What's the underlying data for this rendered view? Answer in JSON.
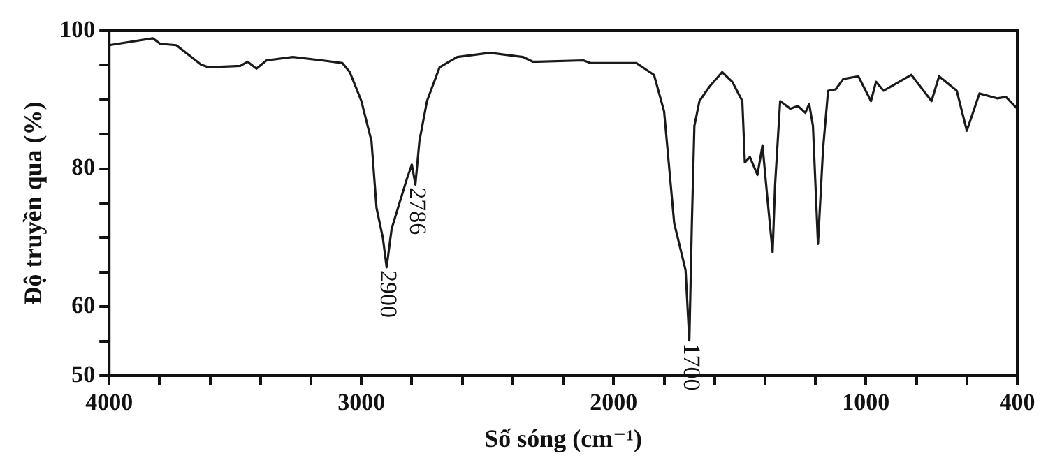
{
  "chart_data": {
    "type": "line",
    "xlabel": "Số sóng (cm⁻¹)",
    "ylabel": "Độ truyền qua (%)",
    "x": [
      4000,
      3827,
      3798,
      3734,
      3636,
      3607,
      3480,
      3451,
      3416,
      3376,
      3272,
      3156,
      3075,
      3046,
      3000,
      2960,
      2940,
      2915,
      2900,
      2880,
      2850,
      2820,
      2800,
      2786,
      2770,
      2740,
      2690,
      2620,
      2490,
      2360,
      2320,
      2300,
      2120,
      2090,
      1910,
      1840,
      1800,
      1760,
      1715,
      1700,
      1690,
      1680,
      1660,
      1620,
      1570,
      1530,
      1490,
      1480,
      1460,
      1430,
      1410,
      1390,
      1370,
      1360,
      1340,
      1300,
      1270,
      1240,
      1225,
      1210,
      1190,
      1170,
      1150,
      1120,
      1090,
      1030,
      980,
      960,
      930,
      820,
      740,
      710,
      640,
      600,
      550,
      480,
      445,
      400
    ],
    "series": [
      {
        "color": "#1a1a1a",
        "values": [
          97.9,
          98.9,
          98.1,
          97.9,
          95.1,
          94.7,
          94.9,
          95.5,
          94.5,
          95.7,
          96.2,
          95.7,
          95.3,
          94.0,
          89.8,
          84.0,
          74.3,
          70.0,
          65.7,
          71.3,
          74.9,
          78.5,
          80.6,
          77.7,
          84.0,
          89.8,
          94.7,
          96.2,
          96.8,
          96.2,
          95.5,
          95.5,
          95.7,
          95.3,
          95.3,
          93.6,
          88.3,
          72.1,
          65.3,
          55.1,
          72.1,
          86.2,
          89.8,
          91.9,
          94.0,
          92.6,
          89.8,
          80.9,
          81.7,
          79.1,
          83.4,
          75.5,
          67.9,
          77.7,
          89.8,
          88.7,
          89.1,
          88.1,
          89.4,
          86.2,
          69.1,
          82.8,
          91.3,
          91.5,
          93.0,
          93.4,
          89.8,
          92.6,
          91.3,
          93.6,
          89.8,
          93.4,
          91.3,
          85.5,
          90.9,
          90.2,
          90.4,
          88.7
        ]
      }
    ],
    "xlim": [
      4000,
      400
    ],
    "xticks": [
      4000,
      {
        "value": 3800,
        "label": null
      },
      {
        "value": 3600,
        "label": null
      },
      {
        "value": 3400,
        "label": null
      },
      {
        "value": 3200,
        "label": null
      },
      3000,
      {
        "value": 2800,
        "label": null
      },
      {
        "value": 2600,
        "label": null
      },
      {
        "value": 2400,
        "label": null
      },
      {
        "value": 2200,
        "label": null
      },
      2000,
      {
        "value": 1800,
        "label": null
      },
      {
        "value": 1600,
        "label": null
      },
      {
        "value": 1400,
        "label": null
      },
      {
        "value": 1200,
        "label": null
      },
      1000,
      {
        "value": 800,
        "label": null
      },
      {
        "value": 600,
        "label": null
      },
      400
    ],
    "ylim": [
      50,
      100
    ],
    "yticks": [
      50,
      {
        "value": 55,
        "label": null
      },
      60,
      {
        "value": 65,
        "label": null
      },
      {
        "value": 70,
        "label": null
      },
      {
        "value": 75,
        "label": null
      },
      80,
      {
        "value": 85,
        "label": null
      },
      {
        "value": 90,
        "label": null
      },
      {
        "value": 95,
        "label": null
      },
      100
    ],
    "grid": false,
    "legend": false,
    "marker": "none",
    "line_style": "solid",
    "annotations": [
      {
        "text": "2900",
        "x": 2900,
        "y": 65.7
      },
      {
        "text": "2786",
        "x": 2786,
        "y": 77.7
      },
      {
        "text": "1700",
        "x": 1700,
        "y": 55.1
      }
    ]
  }
}
